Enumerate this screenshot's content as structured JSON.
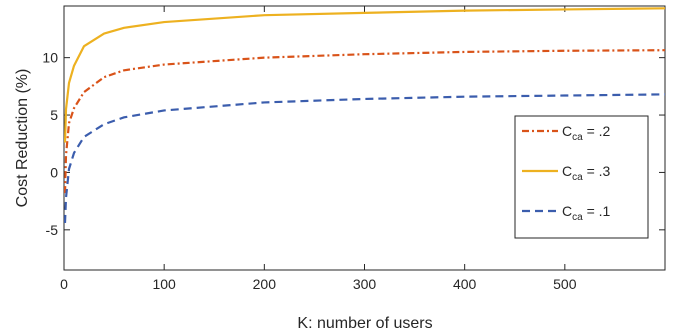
{
  "chart_data": {
    "type": "line",
    "xlabel": "K: number of users",
    "ylabel": "Cost Reduction (%)",
    "xlim": [
      0,
      600
    ],
    "ylim": [
      -8.5,
      14.5
    ],
    "xticks": [
      0,
      100,
      200,
      300,
      400,
      500
    ],
    "yticks": [
      -5,
      0,
      5,
      10
    ],
    "grid": false,
    "legend_position": "right",
    "series": [
      {
        "name": "C_ca = .2",
        "legend_main": "C",
        "legend_sub": "ca",
        "legend_value": " = .2",
        "color": "#D95319",
        "style": "dashdot",
        "x": [
          1,
          2,
          5,
          10,
          20,
          40,
          60,
          100,
          200,
          300,
          400,
          500,
          600
        ],
        "y": [
          -1.8,
          1.5,
          4.3,
          5.6,
          7.0,
          8.3,
          8.9,
          9.4,
          10.0,
          10.3,
          10.5,
          10.6,
          10.65
        ]
      },
      {
        "name": "C_ca = .3",
        "legend_main": "C",
        "legend_sub": "ca",
        "legend_value": " = .3",
        "color": "#EDB120",
        "style": "solid",
        "x": [
          1,
          2,
          5,
          10,
          20,
          40,
          60,
          100,
          200,
          300,
          400,
          500,
          600
        ],
        "y": [
          2.6,
          5.5,
          7.8,
          9.3,
          11.0,
          12.1,
          12.6,
          13.1,
          13.7,
          13.9,
          14.1,
          14.2,
          14.3
        ]
      },
      {
        "name": "C_ca = .1",
        "legend_main": "C",
        "legend_sub": "ca",
        "legend_value": " = .1",
        "color": "#3B5DAD",
        "style": "dashed",
        "x": [
          1,
          2,
          5,
          10,
          20,
          40,
          60,
          100,
          200,
          300,
          400,
          500,
          600
        ],
        "y": [
          -4.4,
          -2.2,
          0.3,
          1.7,
          3.1,
          4.2,
          4.8,
          5.4,
          6.1,
          6.4,
          6.6,
          6.7,
          6.8
        ]
      }
    ]
  }
}
